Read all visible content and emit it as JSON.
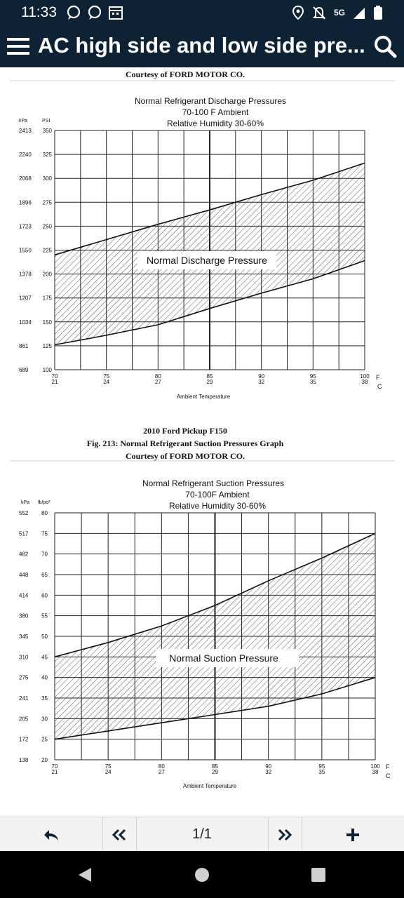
{
  "status_bar": {
    "time": "11:33",
    "network": "5G"
  },
  "app_bar": {
    "title": "AC high side and low side pre..."
  },
  "figure1": {
    "courtesy": "Courtesy of FORD MOTOR CO.",
    "chart_title_lines": [
      "Normal Refrigerant Discharge Pressures",
      "70-100 F Ambient",
      "Relative Humidity 30-60%"
    ],
    "band_label": "Normal Discharge Pressure",
    "left_unit": "kPa",
    "right_unit": "PSI",
    "xlabel": "Ambient Temperature",
    "x_unit_f": "F",
    "x_unit_c": "C"
  },
  "figure2": {
    "model": "2010 Ford Pickup F150",
    "caption": "Fig. 213: Normal Refrigerant Suction Pressures Graph",
    "courtesy": "Courtesy of FORD MOTOR CO.",
    "chart_title_lines": [
      "Normal Refrigerant Suction Pressures",
      "70-100F Ambient",
      "Relative Humidity 30-60%"
    ],
    "band_label": "Normal Suction Pressure",
    "left_unit": "kPa",
    "right_unit": "lb/po²",
    "xlabel": "Ambient Temperature",
    "x_unit_f": "F",
    "x_unit_c": "C"
  },
  "chart_data": [
    {
      "type": "area",
      "title": "Normal Refrigerant Discharge Pressures",
      "subtitle": "70-100 F Ambient / Relative Humidity 30-60%",
      "xlabel": "Ambient Temperature",
      "ylabel": "PSI",
      "xlim": [
        70,
        100
      ],
      "ylim": [
        100,
        350
      ],
      "x_ticks_f": [
        70,
        75,
        80,
        85,
        90,
        95,
        100
      ],
      "x_ticks_c": [
        21,
        24,
        27,
        29,
        32,
        35,
        38
      ],
      "y_ticks_psi": [
        100,
        125,
        150,
        175,
        200,
        225,
        250,
        275,
        300,
        325,
        350
      ],
      "y_ticks_kpa": [
        689,
        861,
        1034,
        1207,
        1378,
        1550,
        1723,
        1896,
        2068,
        2240,
        2413
      ],
      "grid": true,
      "series": [
        {
          "name": "upper",
          "x": [
            70,
            75,
            80,
            85,
            90,
            95,
            100
          ],
          "values": [
            220,
            236,
            252,
            267,
            283,
            298,
            316
          ]
        },
        {
          "name": "lower",
          "x": [
            70,
            75,
            80,
            85,
            90,
            95,
            100
          ],
          "values": [
            126,
            136,
            147,
            164,
            180,
            195,
            214
          ]
        }
      ]
    },
    {
      "type": "area",
      "title": "Normal Refrigerant Suction Pressures",
      "subtitle": "70-100F Ambient / Relative Humidity 30-60%",
      "xlabel": "Ambient Temperature",
      "ylabel": "lb/po²",
      "xlim": [
        70,
        100
      ],
      "ylim": [
        20,
        80
      ],
      "x_ticks_f": [
        70,
        75,
        80,
        85,
        90,
        95,
        100
      ],
      "x_ticks_c": [
        21,
        24,
        27,
        29,
        32,
        35,
        38
      ],
      "y_ticks_psi": [
        20,
        25,
        30,
        35,
        40,
        45,
        50,
        55,
        60,
        65,
        70,
        75,
        80
      ],
      "y_ticks_kpa": [
        138,
        172,
        205,
        241,
        275,
        310,
        345,
        380,
        414,
        448,
        482,
        517,
        552
      ],
      "grid": true,
      "series": [
        {
          "name": "upper",
          "x": [
            70,
            75,
            80,
            85,
            90,
            95,
            100
          ],
          "values": [
            45,
            48.5,
            52.5,
            57.5,
            63.5,
            69,
            75
          ]
        },
        {
          "name": "lower",
          "x": [
            70,
            75,
            80,
            85,
            90,
            95,
            100
          ],
          "values": [
            25,
            27,
            29,
            31,
            33,
            36,
            40
          ]
        }
      ]
    }
  ],
  "toolbar": {
    "page_indicator": "1/1"
  },
  "icons": {
    "menu": "hamburger-icon",
    "search": "search-icon",
    "back": "reply-arrow-icon",
    "first": "double-chevron-left-icon",
    "last": "double-chevron-right-icon",
    "add": "plus-icon",
    "nav_back": "triangle-back-icon",
    "nav_home": "circle-home-icon",
    "nav_recent": "square-recent-icon"
  }
}
